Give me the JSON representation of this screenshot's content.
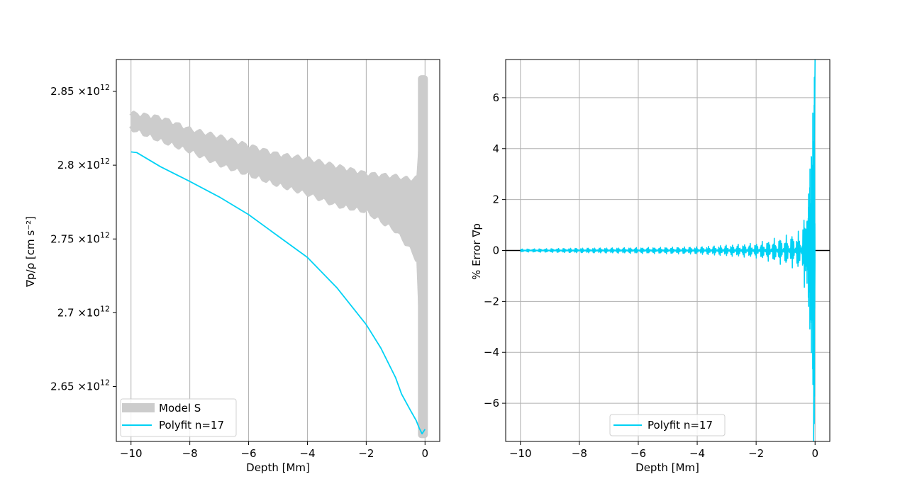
{
  "chart_data": [
    {
      "type": "line",
      "xlabel": "Depth [Mm]",
      "ylabel": "∇p/ρ [cm s⁻²]",
      "xlim": [
        -10.5,
        0.5
      ],
      "ylim": [
        2612800000000.0,
        2871600000000.0
      ],
      "grid": "vertical",
      "legend_position": "lower-left",
      "x_ticks": [
        -10,
        -8,
        -6,
        -4,
        -2,
        0
      ],
      "x_tick_labels": [
        "−10",
        "−8",
        "−6",
        "−4",
        "−2",
        "0"
      ],
      "y_ticks": [
        {
          "value": 2650000000000.0,
          "mantissa": "2.65",
          "base": "×10",
          "exponent": "12"
        },
        {
          "value": 2700000000000.0,
          "mantissa": "2.7",
          "base": "×10",
          "exponent": "12"
        },
        {
          "value": 2750000000000.0,
          "mantissa": "2.75",
          "base": "×10",
          "exponent": "12"
        },
        {
          "value": 2800000000000.0,
          "mantissa": "2.8",
          "base": "×10",
          "exponent": "12"
        },
        {
          "value": 2850000000000.0,
          "mantissa": "2.85",
          "base": "×10",
          "exponent": "12"
        }
      ],
      "series": [
        {
          "name": "Model S",
          "style": "band",
          "color": "#cccccc",
          "x": [
            -10.0,
            -9.0,
            -8.0,
            -7.0,
            -6.0,
            -5.0,
            -4.0,
            -3.0,
            -2.0,
            -1.0,
            -0.5,
            -0.3,
            -0.1
          ],
          "upper": [
            2834000000000.0,
            2831000000000.0,
            2823000000000.0,
            2818000000000.0,
            2812000000000.0,
            2806000000000.0,
            2803000000000.0,
            2798000000000.0,
            2793000000000.0,
            2791000000000.0,
            2789000000000.0,
            2790000000000.0,
            2790000000000.0
          ],
          "lower": [
            2826000000000.0,
            2818000000000.0,
            2811000000000.0,
            2802000000000.0,
            2795000000000.0,
            2788000000000.0,
            2782000000000.0,
            2774000000000.0,
            2770000000000.0,
            2757000000000.0,
            2745000000000.0,
            2738000000000.0,
            2735000000000.0
          ],
          "spike": {
            "x": 0.0,
            "ymin": 2615000000000.0,
            "ymax": 2861000000000.0
          }
        },
        {
          "name": "Polyfit n=17",
          "color": "#00d2f5",
          "x": [
            -10.0,
            -9.8,
            -9.0,
            -8.0,
            -7.0,
            -6.0,
            -5.0,
            -4.0,
            -3.0,
            -2.0,
            -1.5,
            -1.0,
            -0.8,
            -0.5,
            -0.3,
            -0.2,
            -0.1,
            0.0
          ],
          "y": [
            2809000000000.0,
            2808500000000.0,
            2799000000000.0,
            2789000000000.0,
            2778500000000.0,
            2766500000000.0,
            2752000000000.0,
            2737500000000.0,
            2717000000000.0,
            2692000000000.0,
            2676000000000.0,
            2656000000000.0,
            2645000000000.0,
            2634000000000.0,
            2627000000000.0,
            2622000000000.0,
            2618000000000.0,
            2621000000000.0
          ]
        }
      ]
    },
    {
      "type": "line",
      "xlabel": "Depth [Mm]",
      "ylabel": "% Error ∇p",
      "xlim": [
        -10.5,
        0.5
      ],
      "ylim": [
        -7.5,
        7.5
      ],
      "grid": "both",
      "legend_position": "lower-center",
      "zero_line": true,
      "x_ticks": [
        -10,
        -8,
        -6,
        -4,
        -2,
        0
      ],
      "x_tick_labels": [
        "−10",
        "−8",
        "−6",
        "−4",
        "−2",
        "0"
      ],
      "y_ticks": [
        -6,
        -4,
        -2,
        0,
        2,
        4,
        6
      ],
      "y_tick_labels": [
        "−6",
        "−4",
        "−2",
        "0",
        "2",
        "4",
        "6"
      ],
      "series": [
        {
          "name": "Polyfit n=17",
          "color": "#00d2f5",
          "x": [
            -10.0,
            -8.0,
            -6.0,
            -4.0,
            -2.0,
            -1.0,
            -0.5,
            -0.3,
            -0.2,
            -0.1,
            -0.05,
            0.0
          ],
          "amplitude": [
            0.06,
            0.1,
            0.12,
            0.15,
            0.3,
            0.6,
            0.8,
            1.8,
            3.6,
            4.5,
            6.5,
            7.5
          ]
        }
      ]
    }
  ]
}
